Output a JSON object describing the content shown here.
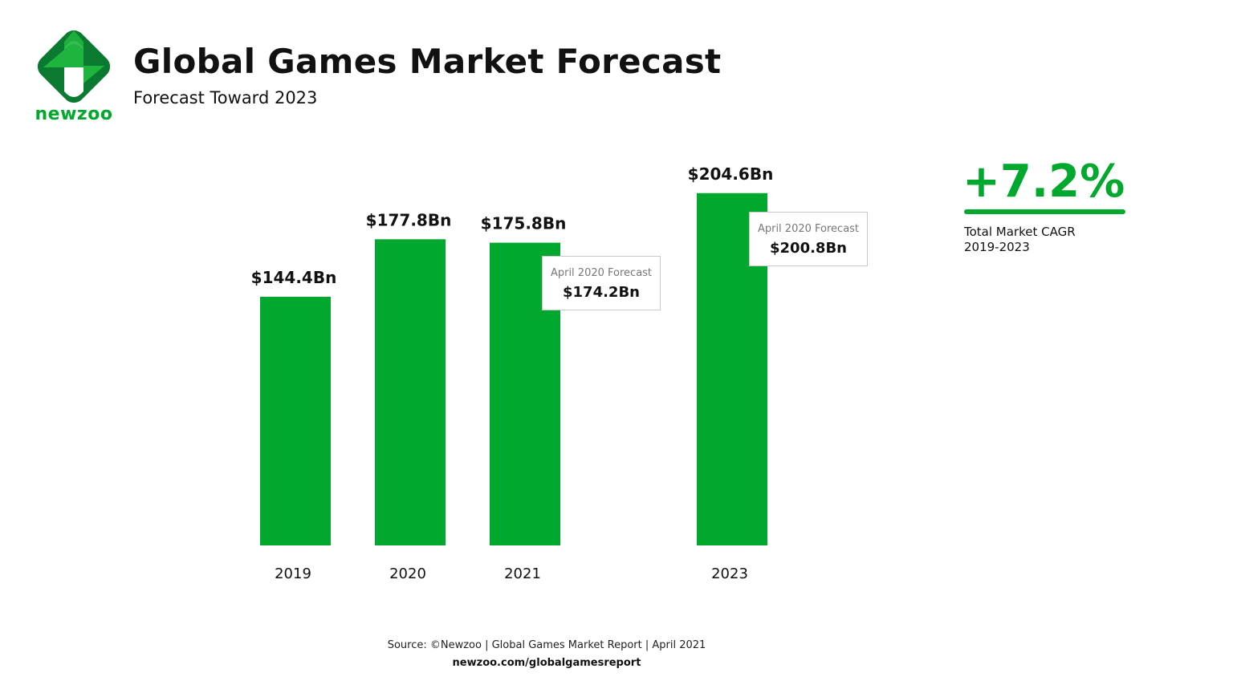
{
  "header": {
    "title": "Global Games Market Forecast",
    "subtitle": "Forecast Toward 2023",
    "logo_text": "newzoo"
  },
  "colors": {
    "bar": "#00a82d",
    "logo_dark": "#0b7a31",
    "logo_light": "#1fb43e"
  },
  "chart_data": {
    "type": "bar",
    "categories": [
      "2019",
      "2020",
      "2021",
      "2023"
    ],
    "values": [
      144.4,
      177.8,
      175.8,
      204.6
    ],
    "data_labels": [
      "$144.4Bn",
      "$177.8Bn",
      "$175.8Bn",
      "$204.6Bn"
    ],
    "ylim": [
      0,
      204.6
    ],
    "grid": false,
    "annotations": [
      {
        "category": "2021",
        "label": "April 2020 Forecast",
        "value": 174.2,
        "value_text": "$174.2Bn"
      },
      {
        "category": "2023",
        "label": "April 2020 Forecast",
        "value": 200.8,
        "value_text": "$200.8Bn"
      }
    ]
  },
  "cagr": {
    "value": "+7.2%",
    "label_line1": "Total Market CAGR",
    "label_line2": "2019-2023"
  },
  "footer": {
    "source": "Source: ©Newzoo | Global Games Market Report | April 2021",
    "url": "newzoo.com/globalgamesreport"
  }
}
